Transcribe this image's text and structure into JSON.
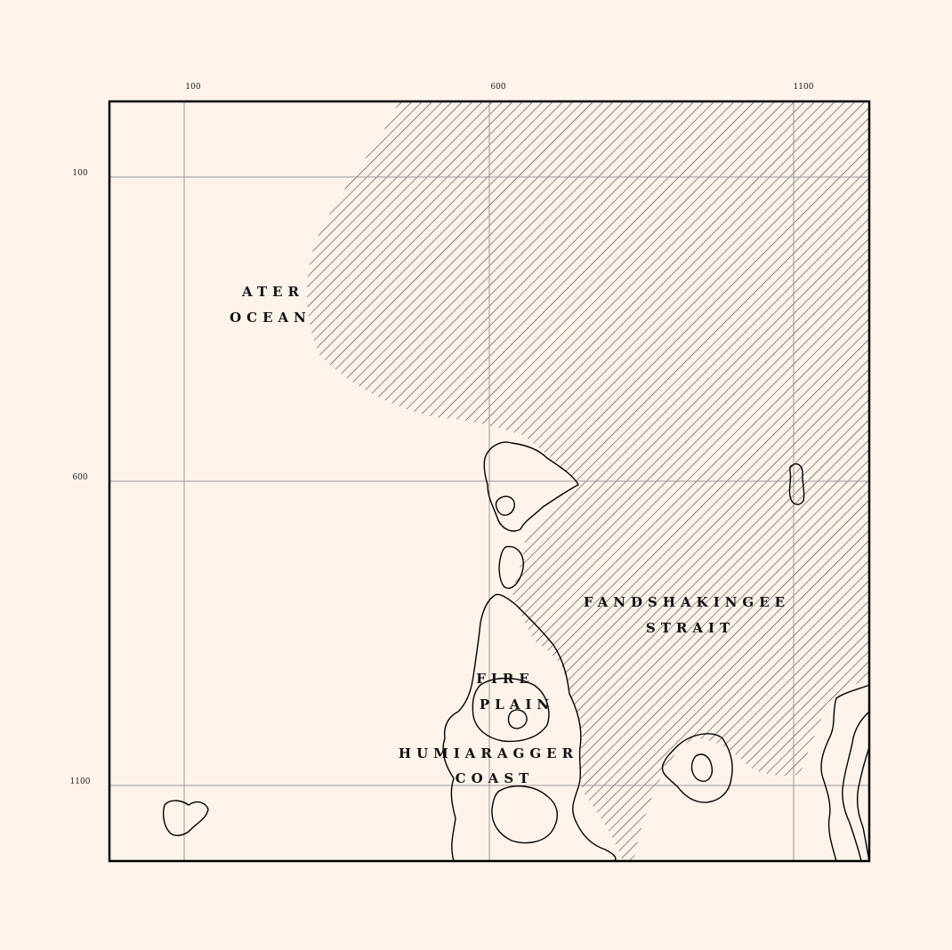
{
  "map": {
    "x_ticks": [
      "100",
      "600",
      "1100"
    ],
    "y_ticks": [
      "100",
      "600",
      "1100"
    ],
    "labels": {
      "ocean_line1": "ATER",
      "ocean_line2": "OCEAN",
      "strait_line1": "FANDSHAKINGEE",
      "strait_line2": "STRAIT",
      "plain_line1": "FIRE",
      "plain_line2": "PLAIN",
      "coast_line1": "HUMIARAGGER",
      "coast_line2": "COAST"
    },
    "colors": {
      "background": "#fdf3ea",
      "grid": "#999999",
      "hatch": "#333333",
      "coastline": "#000000"
    },
    "hatched_area": "strait water"
  }
}
